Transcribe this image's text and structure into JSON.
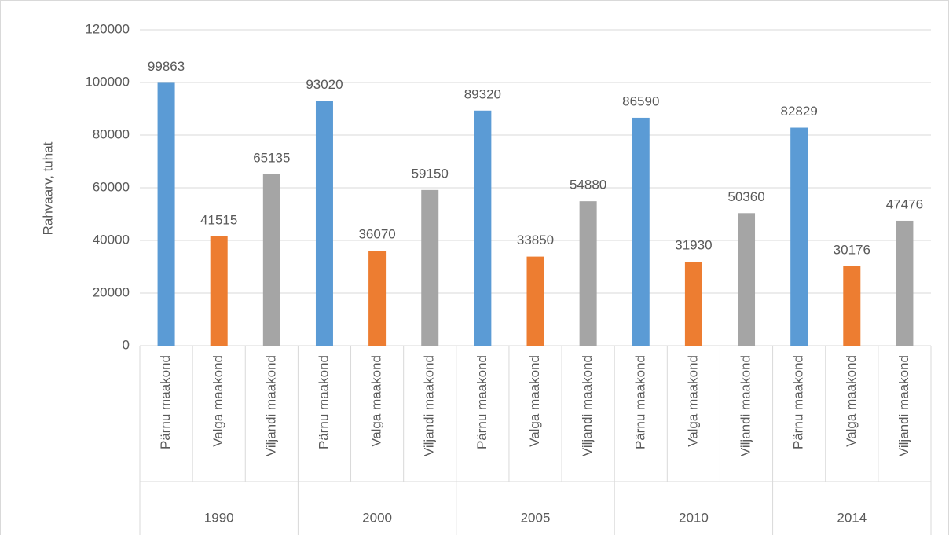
{
  "chart_data": {
    "type": "bar",
    "y_axis_label": "Rahvaarv, tuhat",
    "categories": [
      "1990",
      "2000",
      "2005",
      "2010",
      "2014"
    ],
    "series": [
      {
        "name": "Pärnu maakond",
        "color": "#5b9bd5",
        "values": [
          99863,
          93020,
          89320,
          86590,
          82829
        ]
      },
      {
        "name": "Valga maakond",
        "color": "#ed7d31",
        "values": [
          41515,
          36070,
          33850,
          31930,
          30176
        ]
      },
      {
        "name": "Viljandi maakond",
        "color": "#a5a5a5",
        "values": [
          65135,
          59150,
          54880,
          50360,
          47476
        ]
      }
    ],
    "ylim": [
      0,
      120000
    ],
    "yticks": [
      0,
      20000,
      40000,
      60000,
      80000,
      100000,
      120000
    ],
    "grid": true
  }
}
